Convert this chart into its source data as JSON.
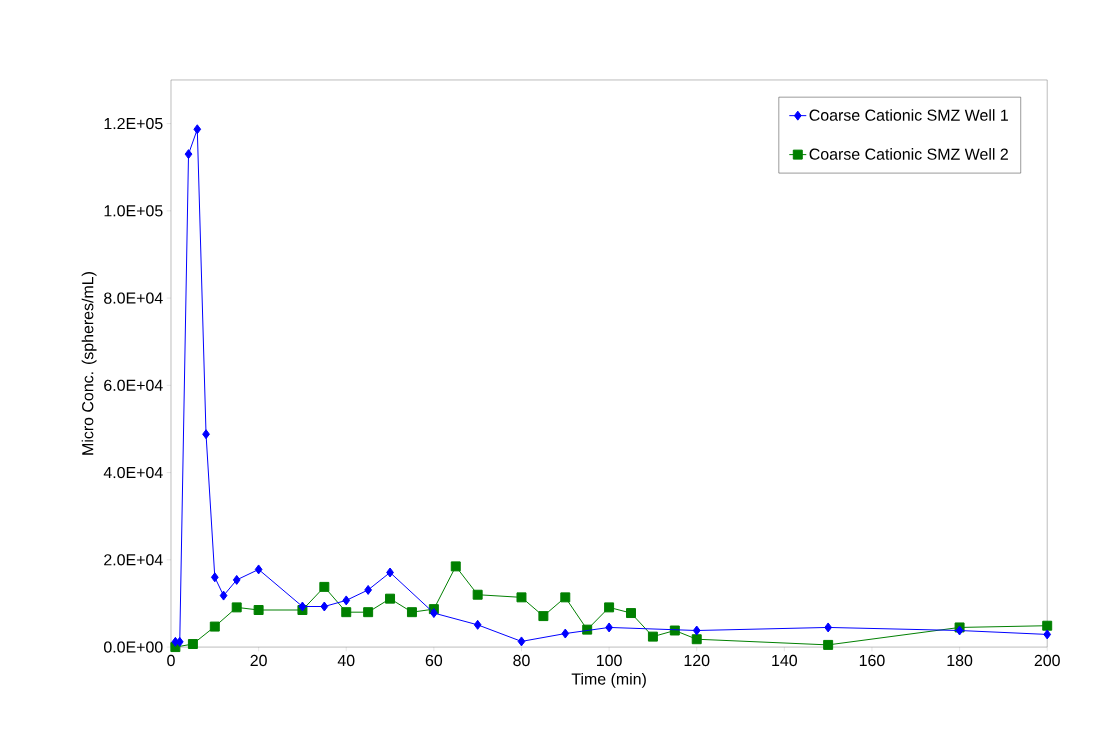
{
  "chart_data": {
    "type": "line",
    "xlabel": "Time (min)",
    "ylabel": "Micro Conc. (spheres/mL)",
    "xlim": [
      0,
      200
    ],
    "xticks": [
      0,
      20,
      40,
      60,
      80,
      100,
      120,
      140,
      160,
      180,
      200
    ],
    "ylim": [
      0,
      130000
    ],
    "yticks": [
      {
        "value": 0,
        "label": "0.0E+00"
      },
      {
        "value": 20000,
        "label": "2.0E+04"
      },
      {
        "value": 40000,
        "label": "4.0E+04"
      },
      {
        "value": 60000,
        "label": "6.0E+04"
      },
      {
        "value": 80000,
        "label": "8.0E+04"
      },
      {
        "value": 100000,
        "label": "1.0E+05"
      },
      {
        "value": 120000,
        "label": "1.2E+05"
      }
    ],
    "legend": "top right",
    "grid": false,
    "line_style": "solid",
    "series": [
      {
        "name": "Coarse Cationic SMZ Well 1",
        "color": "#0000ff",
        "marker": "diamond",
        "x": [
          1,
          2,
          4,
          6,
          8,
          10,
          12,
          15,
          20,
          30,
          35,
          40,
          45,
          50,
          60,
          70,
          80,
          90,
          100,
          120,
          150,
          180,
          200
        ],
        "values": [
          1200,
          1200,
          113000,
          118700,
          48800,
          16000,
          11800,
          15400,
          17800,
          9300,
          9300,
          10700,
          13100,
          17100,
          7800,
          5100,
          1300,
          3100,
          4500,
          3800,
          4500,
          3800,
          2900
        ]
      },
      {
        "name": "Coarse Cationic SMZ Well 2",
        "color": "#008000",
        "marker": "square",
        "x": [
          1,
          5,
          10,
          15,
          20,
          30,
          35,
          40,
          45,
          50,
          55,
          60,
          65,
          70,
          80,
          85,
          90,
          95,
          100,
          105,
          110,
          115,
          120,
          150,
          180,
          200
        ],
        "values": [
          0,
          700,
          4700,
          9100,
          8500,
          8500,
          13800,
          8000,
          8000,
          11100,
          8000,
          8700,
          18500,
          12000,
          11400,
          7100,
          11400,
          4000,
          9100,
          7800,
          2400,
          3800,
          1800,
          500,
          4500,
          4900
        ]
      }
    ]
  }
}
